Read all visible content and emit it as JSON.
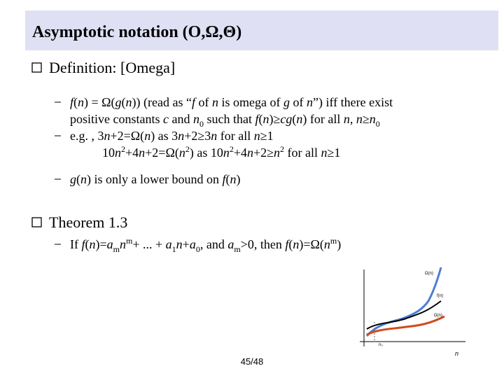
{
  "header": {
    "title": "Asymptotic notation (O,Ω,Θ)"
  },
  "sections": [
    {
      "heading": "Definition: [Omega]",
      "items": [
        {
          "lines": [
            [
              {
                "i": "f"
              },
              "(",
              {
                "i": "n"
              },
              ") = Ω(",
              {
                "i": "g"
              },
              "(",
              {
                "i": "n"
              },
              ")) (read as “",
              {
                "i": "f"
              },
              " of ",
              {
                "i": "n"
              },
              " is omega of ",
              {
                "i": "g"
              },
              " of ",
              {
                "i": "n"
              },
              "”) iff there exist"
            ],
            [
              "positive constants ",
              {
                "i": "c"
              },
              " and ",
              {
                "i": "n"
              },
              {
                "sub": "0"
              },
              " such that ",
              {
                "i": "f"
              },
              "(",
              {
                "i": "n"
              },
              ")≥",
              {
                "i": "cg"
              },
              "(",
              {
                "i": "n"
              },
              ") for all ",
              {
                "i": "n"
              },
              ", ",
              {
                "i": "n"
              },
              "≥",
              {
                "i": "n"
              },
              {
                "sub": "0"
              }
            ]
          ]
        },
        {
          "lines": [
            [
              "e.g. , 3",
              {
                "i": "n"
              },
              "+2=Ω(",
              {
                "i": "n"
              },
              ") as 3",
              {
                "i": "n"
              },
              "+2≥3",
              {
                "i": "n"
              },
              " for all ",
              {
                "i": "n"
              },
              "≥1"
            ],
            [
              "10",
              {
                "i": "n"
              },
              {
                "sup": "2"
              },
              "+4",
              {
                "i": "n"
              },
              "+2=Ω(",
              {
                "i": "n"
              },
              {
                "sup": "2"
              },
              ") as 10",
              {
                "i": "n"
              },
              {
                "sup": "2"
              },
              "+4",
              {
                "i": "n"
              },
              "+2≥",
              {
                "i": "n"
              },
              {
                "sup": "2"
              },
              " for all ",
              {
                "i": "n"
              },
              "≥1"
            ]
          ]
        },
        {
          "lines": [
            [
              {
                "i": "g"
              },
              "(",
              {
                "i": "n"
              },
              ") is only a lower bound on ",
              {
                "i": "f"
              },
              "(",
              {
                "i": "n"
              },
              ")"
            ]
          ]
        }
      ]
    },
    {
      "heading": "Theorem 1.3",
      "items": [
        {
          "lines": [
            [
              "If ",
              {
                "i": "f"
              },
              "(",
              {
                "i": "n"
              },
              ")=",
              {
                "i": "a"
              },
              {
                "sub": "m"
              },
              {
                "i": "n"
              },
              {
                "sup": "m"
              },
              "+ ... + ",
              {
                "i": "a"
              },
              {
                "sub": "1"
              },
              {
                "i": "n"
              },
              "+",
              {
                "i": "a"
              },
              {
                "sub": "0"
              },
              ", and ",
              {
                "i": "a"
              },
              {
                "sub": "m"
              },
              ">0, then ",
              {
                "i": "f"
              },
              "(",
              {
                "i": "n"
              },
              ")=Ω(",
              {
                "i": "n"
              },
              {
                "sup": "m"
              },
              ")"
            ]
          ]
        }
      ]
    }
  ],
  "figure": {
    "labels": [
      "Ω(n)",
      "f(n)",
      "Ω(n)"
    ],
    "x_origin": "n₀",
    "x_axis": "n"
  },
  "footer": {
    "page": "45/48"
  }
}
